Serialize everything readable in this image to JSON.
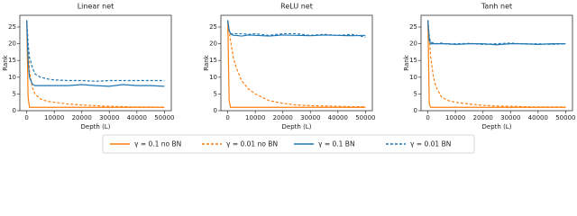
{
  "chart_data": [
    {
      "type": "line",
      "title": "Linear net",
      "x_label": "Depth (L)",
      "y_label": "Rank",
      "x": [
        0,
        500,
        1000,
        2000,
        3000,
        5000,
        7500,
        10000,
        15000,
        20000,
        25000,
        30000,
        35000,
        40000,
        45000,
        50000
      ],
      "xlim": [
        -2500,
        52500
      ],
      "xticks": [
        0,
        10000,
        20000,
        30000,
        40000,
        50000
      ],
      "ylim": [
        0,
        28.5
      ],
      "yticks": [
        0,
        5,
        10,
        15,
        20,
        25
      ],
      "series": [
        {
          "name": "γ = 0.1 no BN",
          "color": "#ff7f0e",
          "dashed": false,
          "values": [
            27,
            4,
            1,
            1,
            1,
            1,
            1,
            1,
            1,
            1,
            1,
            1,
            1,
            1,
            1,
            1
          ]
        },
        {
          "name": "γ = 0.01 no BN",
          "color": "#ff7f0e",
          "dashed": true,
          "values": [
            27,
            20,
            12,
            7,
            5,
            3.5,
            2.8,
            2.5,
            2,
            1.7,
            1.5,
            1.3,
            1.2,
            1.1,
            1.1,
            1
          ]
        },
        {
          "name": "γ = 0.1 BN",
          "color": "#1f77b4",
          "dashed": false,
          "values": [
            27,
            15,
            10,
            8,
            7.5,
            7.5,
            7.5,
            7.5,
            7.5,
            7.8,
            7.5,
            7.3,
            7.8,
            7.5,
            7.5,
            7.3
          ]
        },
        {
          "name": "γ = 0.01 BN",
          "color": "#1f77b4",
          "dashed": true,
          "values": [
            27,
            20,
            16,
            13,
            11,
            10,
            9.5,
            9.2,
            9,
            9,
            8.8,
            9,
            9,
            9,
            9,
            9
          ]
        }
      ]
    },
    {
      "type": "line",
      "title": "ReLU net",
      "x_label": "Depth (L)",
      "y_label": "Rank",
      "x": [
        0,
        500,
        1000,
        2000,
        3000,
        5000,
        7500,
        10000,
        15000,
        20000,
        25000,
        30000,
        35000,
        40000,
        45000,
        50000
      ],
      "xlim": [
        -2500,
        52500
      ],
      "xticks": [
        0,
        10000,
        20000,
        30000,
        40000,
        50000
      ],
      "ylim": [
        0,
        28.5
      ],
      "yticks": [
        0,
        5,
        10,
        15,
        20,
        25
      ],
      "series": [
        {
          "name": "γ = 0.1 no BN",
          "color": "#ff7f0e",
          "dashed": false,
          "values": [
            27,
            3,
            1,
            1,
            1,
            1,
            1,
            1,
            1,
            1,
            1,
            1,
            1,
            1,
            1,
            1
          ]
        },
        {
          "name": "γ = 0.01 no BN",
          "color": "#ff7f0e",
          "dashed": true,
          "values": [
            27,
            24,
            21,
            16,
            13,
            9,
            6.5,
            5,
            3,
            2.2,
            1.7,
            1.5,
            1.4,
            1.3,
            1.2,
            1.2
          ]
        },
        {
          "name": "γ = 0.1 BN",
          "color": "#1f77b4",
          "dashed": false,
          "values": [
            27,
            24,
            23,
            22.5,
            22.5,
            22.3,
            22.6,
            22.5,
            22.3,
            22.6,
            22.5,
            22.4,
            22.6,
            22.5,
            22.4,
            22.5
          ]
        },
        {
          "name": "γ = 0.01 BN",
          "color": "#1f77b4",
          "dashed": true,
          "values": [
            27,
            24,
            23,
            23,
            23,
            23,
            22.8,
            23,
            22.5,
            23,
            23,
            22.5,
            22.8,
            22.5,
            22.8,
            22
          ]
        }
      ]
    },
    {
      "type": "line",
      "title": "Tanh net",
      "x_label": "Depth (L)",
      "y_label": "Rank",
      "x": [
        0,
        500,
        1000,
        2000,
        3000,
        5000,
        7500,
        10000,
        15000,
        20000,
        25000,
        30000,
        35000,
        40000,
        45000,
        50000
      ],
      "xlim": [
        -2500,
        52500
      ],
      "xticks": [
        0,
        10000,
        20000,
        30000,
        40000,
        50000
      ],
      "ylim": [
        0,
        28.5
      ],
      "yticks": [
        0,
        5,
        10,
        15,
        20,
        25
      ],
      "series": [
        {
          "name": "γ = 0.1 no BN",
          "color": "#ff7f0e",
          "dashed": false,
          "values": [
            27,
            2,
            1,
            1,
            1,
            1,
            1,
            1,
            1,
            1,
            1,
            1,
            1,
            1,
            1,
            1
          ]
        },
        {
          "name": "γ = 0.01 no BN",
          "color": "#ff7f0e",
          "dashed": true,
          "values": [
            27,
            22,
            16,
            10,
            7,
            4,
            3,
            2.5,
            2,
            1.6,
            1.4,
            1.3,
            1.2,
            1.1,
            1.1,
            1.1
          ]
        },
        {
          "name": "γ = 0.1 BN",
          "color": "#1f77b4",
          "dashed": false,
          "values": [
            27,
            21,
            20,
            20,
            20,
            20,
            20,
            19.8,
            20,
            20,
            19.7,
            20,
            20,
            19.8,
            20,
            20
          ]
        },
        {
          "name": "γ = 0.01 BN",
          "color": "#1f77b4",
          "dashed": true,
          "values": [
            27,
            22,
            20.5,
            20.2,
            20,
            20.2,
            19.8,
            20,
            20.1,
            19.8,
            20,
            20.2,
            19.9,
            20,
            19.8,
            20
          ]
        }
      ]
    }
  ]
}
